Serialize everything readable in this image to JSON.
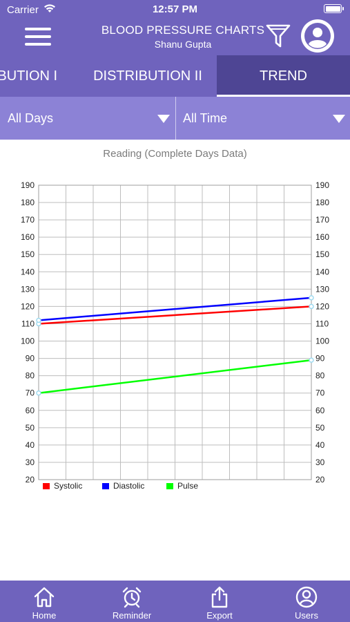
{
  "status_bar": {
    "carrier": "Carrier",
    "time": "12:57 PM"
  },
  "header": {
    "title": "BLOOD PRESSURE CHARTS",
    "subtitle": "Shanu Gupta"
  },
  "tabs": [
    {
      "label": "DISTRIBUTION I",
      "active": false
    },
    {
      "label": "DISTRIBUTION II",
      "active": false
    },
    {
      "label": "TREND",
      "active": true
    }
  ],
  "filters": {
    "days": "All Days",
    "period": "All Time"
  },
  "chart_title": "Reading (Complete Days Data)",
  "chart_data": {
    "type": "line",
    "x": [
      0,
      1
    ],
    "ylim": [
      20,
      190
    ],
    "yticks": [
      20,
      30,
      40,
      50,
      60,
      70,
      80,
      90,
      100,
      110,
      120,
      130,
      140,
      150,
      160,
      170,
      180,
      190
    ],
    "grid": true,
    "legend": "bottom-left",
    "series": [
      {
        "name": "Systolic",
        "color": "#ff0000",
        "values": [
          110,
          120
        ]
      },
      {
        "name": "Diastolic",
        "color": "#0000ff",
        "values": [
          112,
          125
        ]
      },
      {
        "name": "Pulse",
        "color": "#00ff00",
        "values": [
          70,
          89
        ]
      }
    ]
  },
  "tab_bar": [
    {
      "label": "Home",
      "icon": "home-icon"
    },
    {
      "label": "Reminder",
      "icon": "alarm-clock-icon"
    },
    {
      "label": "Export",
      "icon": "export-icon"
    },
    {
      "label": "Users",
      "icon": "users-icon"
    }
  ],
  "colors": {
    "primary": "#6f63bd",
    "active_tab": "#4e4594",
    "filter_bar": "#8c82d6"
  }
}
